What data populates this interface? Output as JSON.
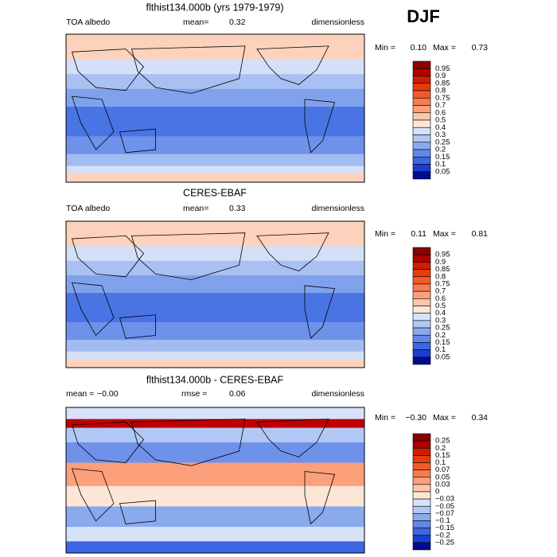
{
  "corner_label": "DJF",
  "colorbar_colors": [
    "#8c0000",
    "#b00000",
    "#d01c00",
    "#e83c08",
    "#f45a28",
    "#f87c4c",
    "#fca07c",
    "#fdc6a8",
    "#fde6d6",
    "#d6e2fa",
    "#b2c8f4",
    "#8aaaee",
    "#6488ea",
    "#3c66e2",
    "#1a3ed2",
    "#000c8c"
  ],
  "panels": [
    {
      "title": "flthist134.000b (yrs 1979-1979)",
      "header": [
        "TOA albedo",
        "mean=",
        "0.32",
        "dimensionless"
      ],
      "min_label": "Min =",
      "min_value": "0.10",
      "max_label": "Max =",
      "max_value": "0.73",
      "colorbar_labels": [
        "0.95",
        "0.9",
        "0.85",
        "0.8",
        "0.75",
        "0.7",
        "0.6",
        "0.5",
        "0.4",
        "0.3",
        "0.25",
        "0.2",
        "0.15",
        "0.1",
        "0.05"
      ]
    },
    {
      "title": "CERES-EBAF",
      "header": [
        "TOA albedo",
        "mean=",
        "0.33",
        "dimensionless"
      ],
      "min_label": "Min =",
      "min_value": "0.11",
      "max_label": "Max =",
      "max_value": "0.81",
      "colorbar_labels": [
        "0.95",
        "0.9",
        "0.85",
        "0.8",
        "0.75",
        "0.7",
        "0.6",
        "0.5",
        "0.4",
        "0.3",
        "0.25",
        "0.2",
        "0.15",
        "0.1",
        "0.05"
      ]
    },
    {
      "title": "flthist134.000b - CERES-EBAF",
      "header": [
        "mean =",
        "−0.00",
        "rmse =",
        "0.06",
        "dimensionless"
      ],
      "min_label": "Min =",
      "min_value": "−0.30",
      "max_label": "Max =",
      "max_value": "0.34",
      "colorbar_labels": [
        "0.25",
        "0.2",
        "0.15",
        "0.1",
        "0.07",
        "0.05",
        "0.03",
        "0",
        "−0.03",
        "−0.05",
        "−0.07",
        "−0.1",
        "−0.15",
        "−0.2",
        "−0.25"
      ]
    }
  ]
}
